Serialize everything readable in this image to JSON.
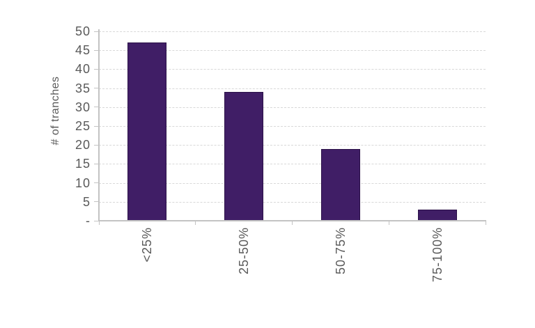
{
  "chart_data": {
    "type": "bar",
    "categories": [
      "<25%",
      "25-50%",
      "50-75%",
      "75-100%"
    ],
    "values": [
      47,
      34,
      19,
      3
    ],
    "title": "",
    "xlabel": "",
    "ylabel": "# of tranches",
    "ylim": [
      0,
      50
    ],
    "ytick_step": 5,
    "ytick_labels": [
      "-",
      "5",
      "10",
      "15",
      "20",
      "25",
      "30",
      "35",
      "40",
      "45",
      "50"
    ],
    "grid": "horizontal-dashed",
    "legend_position": "none",
    "colors": {
      "bar_fill": "#401E66",
      "bar_border": "#2B1148",
      "gridline": "#D8D8D8",
      "axis_line": "#C3C3C3",
      "tick_text": "#595959",
      "background": "#FFFFFF"
    }
  }
}
